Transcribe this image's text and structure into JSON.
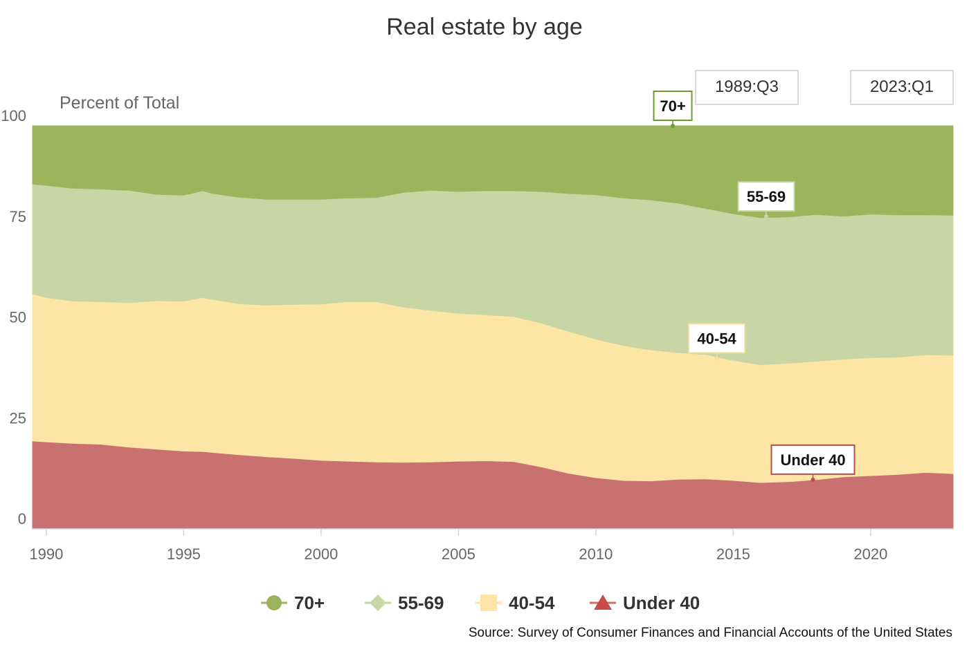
{
  "chart_data": {
    "type": "area",
    "stacking": "percent",
    "title": "Real estate by age",
    "ylabel": "Percent of Total",
    "xlabel": "",
    "xlim": [
      1989.5,
      2023.0
    ],
    "ylim": [
      0,
      100
    ],
    "y_ticks": [
      "0",
      "25",
      "50",
      "75",
      "100"
    ],
    "x_ticks": [
      "1990",
      "1995",
      "2000",
      "2005",
      "2010",
      "2015",
      "2020"
    ],
    "range_selector": {
      "start": "1989:Q3",
      "end": "2023:Q1"
    },
    "x": [
      1989.5,
      1990,
      1991,
      1992,
      1993,
      1994,
      1995,
      1995.7,
      1996,
      1997,
      1998,
      1999,
      2000,
      2001,
      2002,
      2003,
      2004,
      2005,
      2006,
      2007,
      2008,
      2009,
      2010,
      2011,
      2012,
      2013,
      2014,
      2015,
      2016,
      2017,
      2018,
      2019,
      2020,
      2021,
      2022,
      2023
    ],
    "series": [
      {
        "name": "Under 40",
        "color": "#c97171",
        "marker": "triangle",
        "values": [
          21.8,
          21.6,
          21.2,
          21.0,
          20.3,
          19.8,
          19.3,
          19.2,
          19.0,
          18.4,
          17.9,
          17.5,
          17.0,
          16.8,
          16.6,
          16.5,
          16.6,
          16.8,
          16.9,
          16.7,
          15.4,
          13.8,
          12.7,
          12.0,
          11.9,
          12.3,
          12.4,
          12.0,
          11.5,
          11.7,
          12.2,
          12.9,
          13.2,
          13.5,
          14.0,
          13.7
        ]
      },
      {
        "name": "40-54",
        "color": "#fce5a5",
        "marker": "square",
        "values": [
          36.5,
          35.8,
          35.3,
          35.4,
          35.8,
          36.8,
          37.2,
          38.2,
          38.0,
          37.5,
          37.6,
          38.2,
          38.8,
          39.6,
          39.8,
          38.5,
          37.6,
          36.7,
          36.2,
          36.0,
          35.7,
          35.2,
          34.4,
          33.5,
          32.5,
          31.4,
          30.9,
          29.8,
          29.2,
          29.4,
          29.4,
          29.2,
          29.3,
          29.1,
          29.2,
          29.4
        ]
      },
      {
        "name": "55-69",
        "color": "#c8d5a5",
        "marker": "diamond",
        "values": [
          27.3,
          27.8,
          28.0,
          27.9,
          27.9,
          26.4,
          26.3,
          26.5,
          26.3,
          26.4,
          26.3,
          26.1,
          26.0,
          25.7,
          25.8,
          28.5,
          29.8,
          30.2,
          30.8,
          31.2,
          32.6,
          34.2,
          35.8,
          36.6,
          37.2,
          37.1,
          36.2,
          36.4,
          36.5,
          36.3,
          36.4,
          35.5,
          35.6,
          35.3,
          34.7,
          34.7
        ]
      },
      {
        "name": "70+",
        "color": "#9bb55c",
        "marker": "circle",
        "values": [
          14.4,
          14.8,
          15.5,
          15.7,
          16.0,
          17.0,
          17.2,
          16.1,
          16.7,
          17.7,
          18.2,
          18.2,
          18.2,
          17.9,
          17.8,
          16.5,
          16.0,
          16.3,
          16.1,
          16.1,
          16.3,
          16.8,
          17.1,
          17.9,
          18.4,
          19.2,
          20.5,
          21.8,
          22.8,
          22.6,
          22.0,
          22.4,
          21.9,
          22.1,
          22.1,
          22.2
        ]
      }
    ],
    "flags": [
      {
        "label": "70+",
        "series": "70+",
        "x": 2012.8,
        "y": 100.0,
        "border": "#6f9a2c"
      },
      {
        "label": "55-69",
        "series": "55-69",
        "x": 2016.2,
        "y": 77.5,
        "border": "#c8d5a5"
      },
      {
        "label": "40-54",
        "series": "40-54",
        "x": 2014.4,
        "y": 42.3,
        "border": "#f3dfa4"
      },
      {
        "label": "Under 40",
        "series": "Under 40",
        "x": 2017.9,
        "y": 12.2,
        "border": "#b84c4c"
      }
    ],
    "legend_position": "bottom-center",
    "grid": true,
    "source": "Source: Survey of Consumer Finances and Financial Accounts of the United States"
  }
}
